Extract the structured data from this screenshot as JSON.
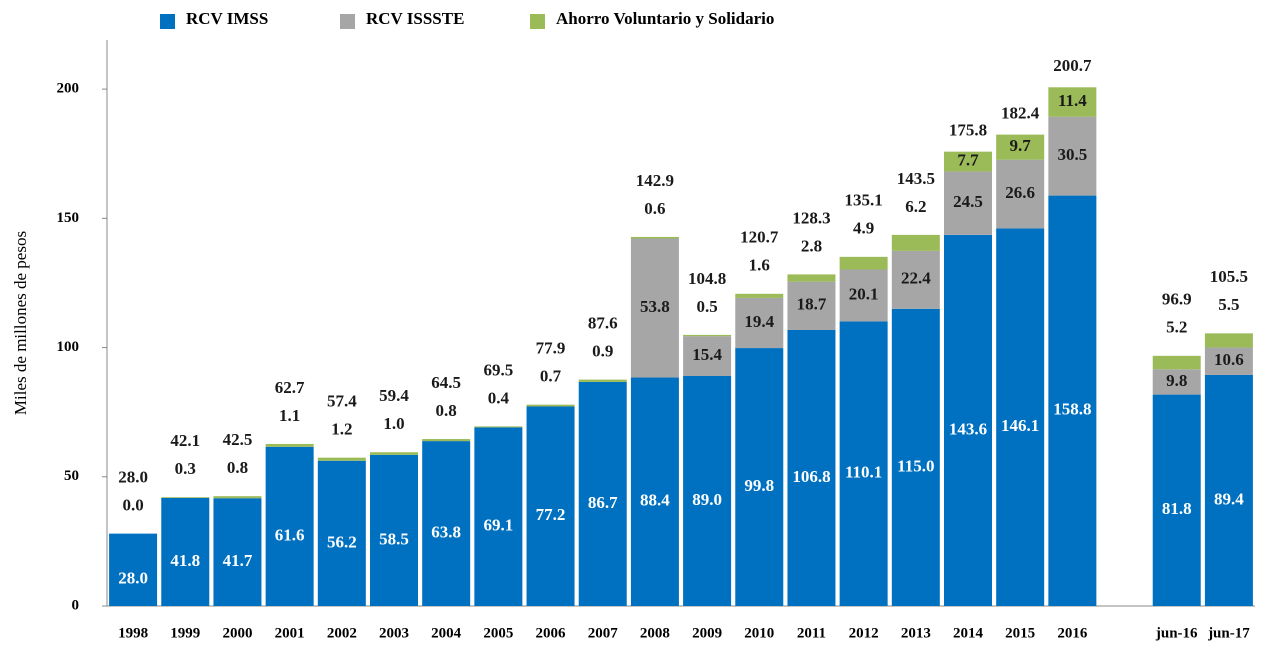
{
  "chart_data": {
    "type": "stacked-bar",
    "y_label": "Miles de millones de pesos",
    "categories": [
      "1998",
      "1999",
      "2000",
      "2001",
      "2002",
      "2003",
      "2004",
      "2005",
      "2006",
      "2007",
      "2008",
      "2009",
      "2010",
      "2011",
      "2012",
      "2013",
      "2014",
      "2015",
      "2016",
      null,
      "jun-16",
      "jun-17"
    ],
    "series": [
      {
        "name": "RCV IMSS",
        "color": "#0070c0",
        "label_color": "#ffffff",
        "values": [
          28.0,
          41.8,
          41.7,
          61.6,
          56.2,
          58.5,
          63.8,
          69.1,
          77.2,
          86.7,
          88.4,
          89.0,
          99.8,
          106.8,
          110.1,
          115.0,
          143.6,
          146.1,
          158.8,
          null,
          81.8,
          89.4
        ],
        "value_labels": [
          "28.0",
          "41.8",
          "41.7",
          "61.6",
          "56.2",
          "58.5",
          "63.8",
          "69.1",
          "77.2",
          "86.7",
          "88.4",
          "89.0",
          "99.8",
          "106.8",
          "110.1",
          "115.0",
          "143.6",
          "146.1",
          "158.8",
          null,
          "81.8",
          "89.4"
        ]
      },
      {
        "name": "RCV ISSSTE",
        "color": "#a6a6a6",
        "label_color": "#1a1a1a",
        "values": [
          null,
          null,
          null,
          null,
          null,
          null,
          null,
          null,
          null,
          null,
          53.8,
          15.4,
          19.4,
          18.7,
          20.1,
          22.4,
          24.5,
          26.6,
          30.5,
          null,
          9.8,
          10.6
        ],
        "value_labels": [
          null,
          null,
          null,
          null,
          null,
          null,
          null,
          null,
          null,
          null,
          "53.8",
          "15.4",
          "19.4",
          "18.7",
          "20.1",
          "22.4",
          "24.5",
          "26.6",
          "30.5",
          null,
          "9.8",
          "10.6"
        ]
      },
      {
        "name": "Ahorro Voluntario y Solidario",
        "color": "#9bbb59",
        "label_color": "#1a1a1a",
        "values": [
          0.0,
          0.3,
          0.8,
          1.1,
          1.2,
          1.0,
          0.8,
          0.4,
          0.7,
          0.9,
          0.6,
          0.5,
          1.6,
          2.8,
          4.9,
          6.2,
          7.7,
          9.7,
          11.4,
          null,
          5.2,
          5.5
        ],
        "value_labels": [
          "0.0",
          "0.3",
          "0.8",
          "1.1",
          "1.2",
          "1.0",
          "0.8",
          "0.4",
          "0.7",
          "0.9",
          "0.6",
          "0.5",
          "1.6",
          "2.8",
          "4.9",
          "6.2",
          "7.7",
          "9.7",
          "11.4",
          null,
          "5.2",
          "5.5"
        ]
      }
    ],
    "totals": [
      28.0,
      42.1,
      42.5,
      62.7,
      57.4,
      59.4,
      64.5,
      69.5,
      77.9,
      87.6,
      142.9,
      104.8,
      120.7,
      128.3,
      135.1,
      143.5,
      175.8,
      182.4,
      200.7,
      null,
      96.9,
      105.5
    ],
    "total_labels": [
      "28.0",
      "42.1",
      "42.5",
      "62.7",
      "57.4",
      "59.4",
      "64.5",
      "69.5",
      "77.9",
      "87.6",
      "142.9",
      "104.8",
      "120.7",
      "128.3",
      "135.1",
      "143.5",
      "175.8",
      "182.4",
      "200.7",
      null,
      "96.9",
      "105.5"
    ],
    "ylim": [
      0,
      219
    ],
    "yticks": [
      0,
      50,
      100,
      150,
      200
    ],
    "grid": false,
    "legend": "top"
  }
}
